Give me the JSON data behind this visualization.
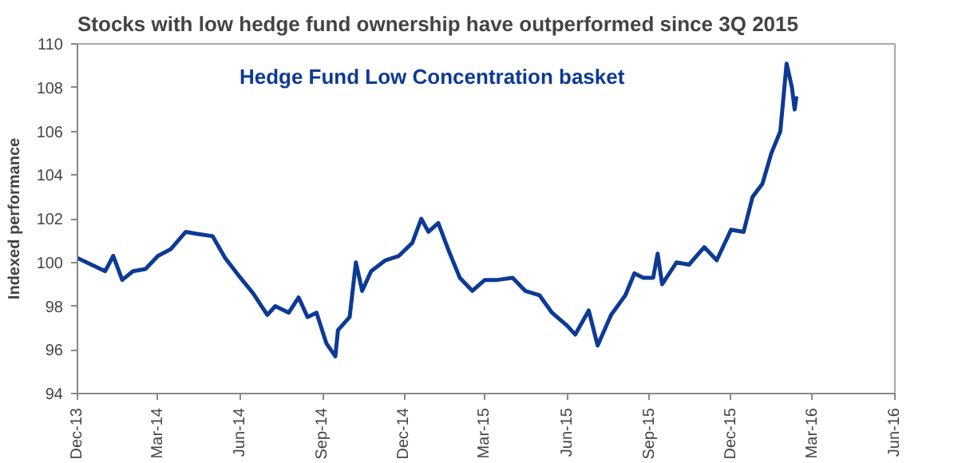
{
  "chart_data": {
    "type": "line",
    "title": "Stocks with low hedge fund ownership have outperformed since 3Q 2015",
    "ylabel": "Indexed performance",
    "annotations": [
      "Hedge Fund Low Concentration basket"
    ],
    "x": [
      "2013-12-01",
      "2014-01-01",
      "2014-01-10",
      "2014-01-20",
      "2014-02-01",
      "2014-02-15",
      "2014-03-01",
      "2014-03-15",
      "2014-04-01",
      "2014-04-15",
      "2014-05-01",
      "2014-05-15",
      "2014-06-01",
      "2014-06-15",
      "2014-07-01",
      "2014-07-10",
      "2014-07-25",
      "2014-08-05",
      "2014-08-15",
      "2014-08-25",
      "2014-09-05",
      "2014-09-15",
      "2014-09-18",
      "2014-10-01",
      "2014-10-08",
      "2014-10-15",
      "2014-10-25",
      "2014-11-10",
      "2014-11-25",
      "2014-12-10",
      "2014-12-20",
      "2014-12-28",
      "2015-01-08",
      "2015-01-20",
      "2015-02-01",
      "2015-02-15",
      "2015-03-01",
      "2015-03-15",
      "2015-04-01",
      "2015-04-15",
      "2015-05-01",
      "2015-05-15",
      "2015-06-01",
      "2015-06-10",
      "2015-06-25",
      "2015-07-05",
      "2015-07-20",
      "2015-08-05",
      "2015-08-15",
      "2015-08-25",
      "2015-09-05",
      "2015-09-10",
      "2015-09-15",
      "2015-10-01",
      "2015-10-15",
      "2015-11-01",
      "2015-11-15",
      "2015-12-01",
      "2015-12-15",
      "2015-12-25",
      "2016-01-05",
      "2016-01-15",
      "2016-01-25",
      "2016-02-01",
      "2016-02-07",
      "2016-02-10",
      "2016-02-12"
    ],
    "series": [
      {
        "color": "#0d3a94",
        "values": [
          100.2,
          99.6,
          100.3,
          99.2,
          99.6,
          99.7,
          100.3,
          100.6,
          101.4,
          101.3,
          101.2,
          100.2,
          99.3,
          98.6,
          97.6,
          98.0,
          97.7,
          98.4,
          97.5,
          97.7,
          96.3,
          95.7,
          96.9,
          97.5,
          100.0,
          98.7,
          99.6,
          100.1,
          100.3,
          100.9,
          102.0,
          101.4,
          101.8,
          100.5,
          99.3,
          98.7,
          99.2,
          99.2,
          99.3,
          98.7,
          98.5,
          97.7,
          97.1,
          96.7,
          97.8,
          96.2,
          97.6,
          98.5,
          99.5,
          99.3,
          99.3,
          100.4,
          99.0,
          100.0,
          99.9,
          100.7,
          100.1,
          101.5,
          101.4,
          103.0,
          103.6,
          105.0,
          106.0,
          109.1,
          108.0,
          107.0,
          107.6
        ]
      }
    ],
    "xlim": [
      "2013-12-01",
      "2016-06-01"
    ],
    "xticks": [
      {
        "value": "2013-12-01",
        "label": "Dec-13"
      },
      {
        "value": "2014-03-01",
        "label": "Mar-14"
      },
      {
        "value": "2014-06-01",
        "label": "Jun-14"
      },
      {
        "value": "2014-09-01",
        "label": "Sep-14"
      },
      {
        "value": "2014-12-01",
        "label": "Dec-14"
      },
      {
        "value": "2015-03-01",
        "label": "Mar-15"
      },
      {
        "value": "2015-06-01",
        "label": "Jun-15"
      },
      {
        "value": "2015-09-01",
        "label": "Sep-15"
      },
      {
        "value": "2015-12-01",
        "label": "Dec-15"
      },
      {
        "value": "2016-03-01",
        "label": "Mar-16"
      },
      {
        "value": "2016-06-01",
        "label": "Jun-16"
      }
    ],
    "ylim": [
      94,
      110
    ],
    "yticks": [
      94,
      96,
      98,
      100,
      102,
      104,
      106,
      108,
      110
    ],
    "grid": false,
    "marker": "none",
    "line_style": "solid"
  }
}
